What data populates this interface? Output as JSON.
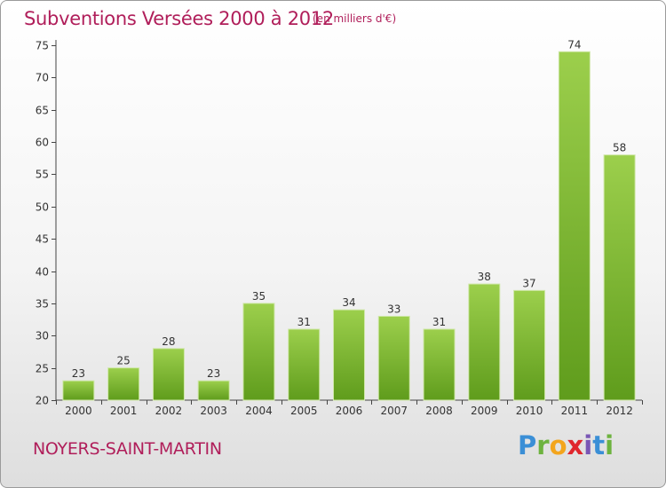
{
  "header": {
    "title": "Subventions Versées 2000 à 2012",
    "subtitle": "(en milliers d'€)"
  },
  "footer": {
    "commune": "NOYERS-SAINT-MARTIN",
    "logo_letters": [
      "P",
      "r",
      "o",
      "x",
      "i",
      "t",
      "i"
    ],
    "logo_colors": [
      "#3b8fd6",
      "#6db33f",
      "#f3a51d",
      "#e0262d",
      "#7a57b5",
      "#3b8fd6",
      "#6db33f"
    ]
  },
  "chart_data": {
    "type": "bar",
    "title": "Subventions Versées 2000 à 2012",
    "subtitle": "(en milliers d'€)",
    "categories": [
      "2000",
      "2001",
      "2002",
      "2003",
      "2004",
      "2005",
      "2006",
      "2007",
      "2008",
      "2009",
      "2010",
      "2011",
      "2012"
    ],
    "values": [
      23,
      25,
      28,
      23,
      35,
      31,
      34,
      33,
      31,
      38,
      37,
      74,
      58
    ],
    "ylim": [
      20,
      75
    ],
    "yticks": [
      20,
      25,
      30,
      35,
      40,
      45,
      50,
      55,
      60,
      65,
      70,
      75
    ],
    "grid": false,
    "colors": {
      "bar_top": "#9ccf4c",
      "bar_bottom": "#5f9c1c",
      "title": "#b01e5a"
    }
  }
}
